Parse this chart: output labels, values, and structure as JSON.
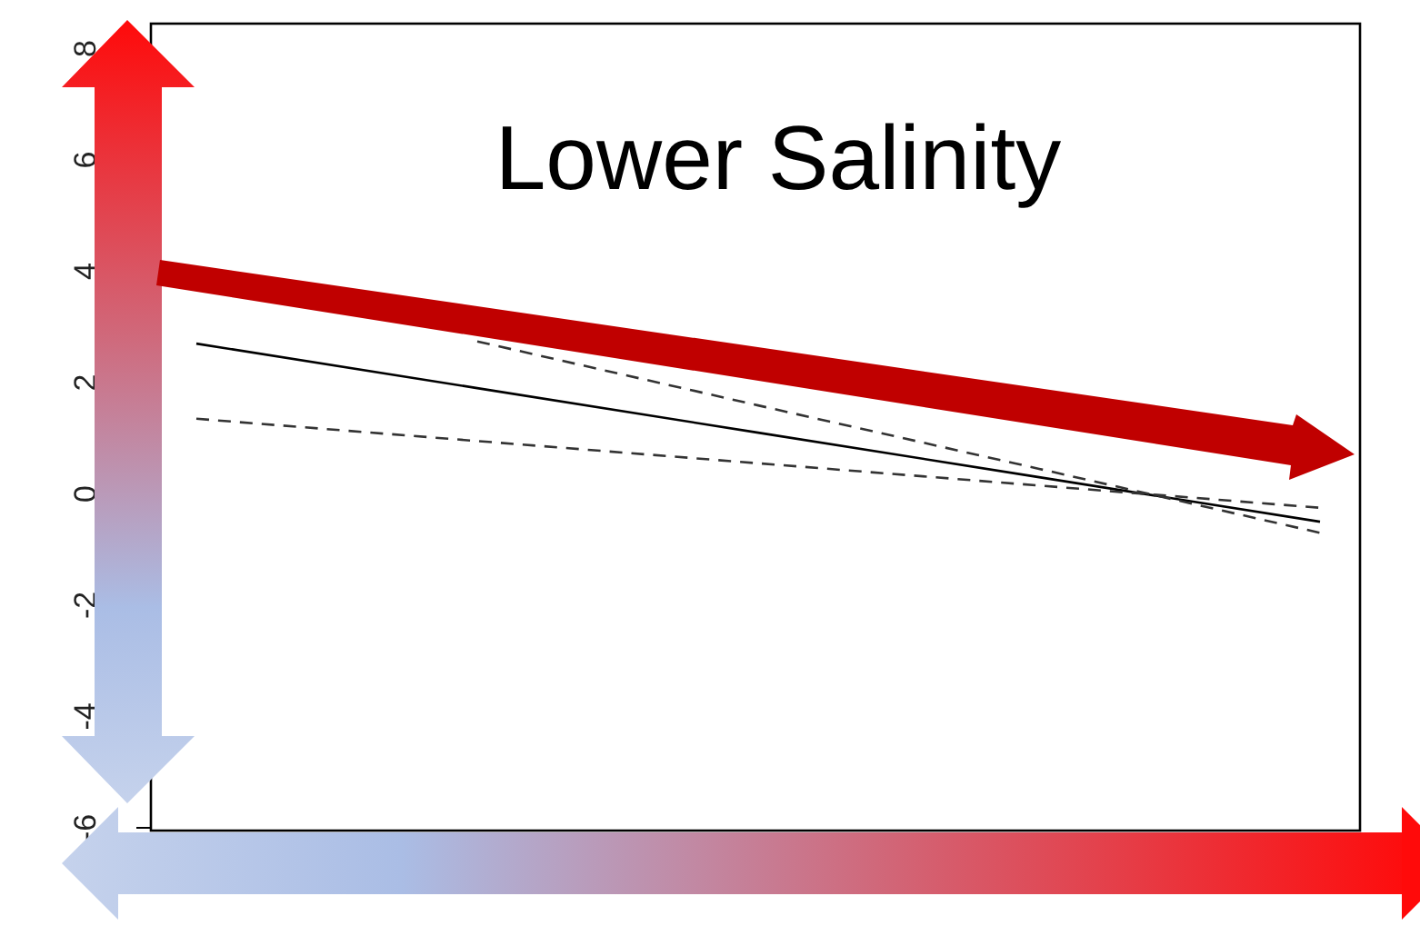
{
  "chart_data": {
    "type": "line",
    "annotations": [
      "Lower Salinity"
    ],
    "categories": [
      null,
      null,
      null,
      null,
      null
    ],
    "ylim": [
      -6.05,
      8.45
    ],
    "yticks": [
      -6,
      -4,
      -2,
      0,
      2,
      4,
      6,
      8
    ],
    "tick_labels": "y",
    "grid": false,
    "series": [
      {
        "color": "#000000",
        "line_style": "solid",
        "values": [
          2.7,
          1.9,
          1.1,
          0.3,
          -0.5
        ]
      },
      {
        "color": "#333333",
        "line_style": "dashed",
        "values": [
          null,
          2.74,
          1.59,
          0.45,
          -0.7
        ]
      },
      {
        "color": "#333333",
        "line_style": "dashed",
        "values": [
          1.35,
          0.95,
          0.55,
          0.15,
          -0.25
        ]
      }
    ]
  }
}
